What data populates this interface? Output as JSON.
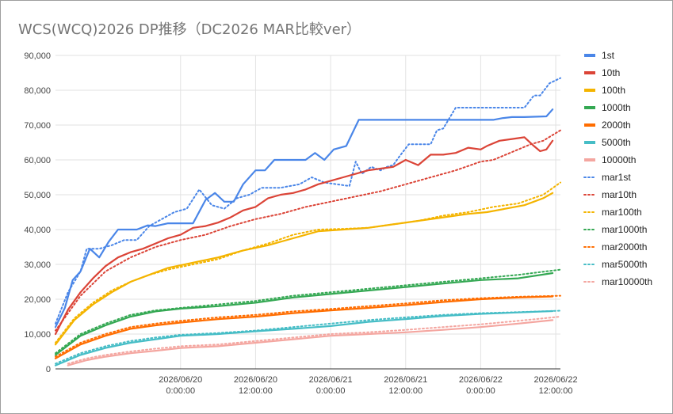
{
  "chart_data": {
    "type": "line",
    "title": "WCS(WCQ)2026 DP推移（DC2026 MAR比較ver）",
    "xlabel": "",
    "ylabel": "",
    "ylim": [
      0,
      90000
    ],
    "xlim": [
      "2026/06/19 04:00",
      "2026/06/22 12:45"
    ],
    "y_ticks": [
      "0",
      "10,000",
      "20,000",
      "30,000",
      "40,000",
      "50,000",
      "60,000",
      "70,000",
      "80,000",
      "90,000"
    ],
    "x_ticks": [
      {
        "at": "2026/06/20 00:00",
        "label": [
          "2026/06/20",
          "0:00:00"
        ]
      },
      {
        "at": "2026/06/20 12:00",
        "label": [
          "2026/06/20",
          "12:00:00"
        ]
      },
      {
        "at": "2026/06/21 00:00",
        "label": [
          "2026/06/21",
          "0:00:00"
        ]
      },
      {
        "at": "2026/06/21 12:00",
        "label": [
          "2026/06/21",
          "12:00:00"
        ]
      },
      {
        "at": "2026/06/22 00:00",
        "label": [
          "2026/06/22",
          "0:00:00"
        ]
      },
      {
        "at": "2026/06/22 12:00",
        "label": [
          "2026/06/22",
          "12:00:00"
        ]
      }
    ],
    "grid": true,
    "legend_position": "right",
    "series": [
      {
        "name": "1st",
        "color": "#4a86e8",
        "style": "solid",
        "x": [
          "2026/06/19 04:00",
          "2026/06/19 05:30",
          "2026/06/19 06:45",
          "2026/06/19 08:00",
          "2026/06/19 09:30",
          "2026/06/19 11:00",
          "2026/06/19 12:30",
          "2026/06/19 14:00",
          "2026/06/19 15:30",
          "2026/06/19 17:00",
          "2026/06/19 18:45",
          "2026/06/19 20:00",
          "2026/06/19 22:00",
          "2026/06/20 00:00",
          "2026/06/20 02:00",
          "2026/06/20 04:00",
          "2026/06/20 05:30",
          "2026/06/20 07:00",
          "2026/06/20 08:30",
          "2026/06/20 10:00",
          "2026/06/20 12:00",
          "2026/06/20 13:30",
          "2026/06/20 15:00",
          "2026/06/20 16:30",
          "2026/06/20 17:30",
          "2026/06/20 18:30",
          "2026/06/20 20:00",
          "2026/06/20 21:30",
          "2026/06/20 23:00",
          "2026/06/21 00:30",
          "2026/06/21 02:30",
          "2026/06/21 04:30",
          "2026/06/21 06:00",
          "2026/06/21 07:30",
          "2026/06/21 09:00",
          "2026/06/21 10:00",
          "2026/06/21 11:00",
          "2026/06/21 12:00",
          "2026/06/21 13:00",
          "2026/06/21 15:00",
          "2026/06/21 18:00",
          "2026/06/22 00:00",
          "2026/06/22 02:00",
          "2026/06/22 03:30",
          "2026/06/22 05:00",
          "2026/06/22 07:00",
          "2026/06/22 09:00",
          "2026/06/22 10:30",
          "2026/06/22 11:30"
        ],
        "y": [
          12000,
          17500,
          25500,
          28000,
          34500,
          32000,
          36500,
          40000,
          40000,
          40000,
          41200,
          41000,
          41800,
          41800,
          41800,
          48500,
          50500,
          48000,
          48000,
          53000,
          57000,
          57000,
          60000,
          60000,
          60000,
          60000,
          60000,
          62000,
          60000,
          63000,
          64000,
          71500,
          71500,
          71500,
          71500,
          71500,
          71500,
          71500,
          71500,
          71500,
          71500,
          71500,
          71500,
          72000,
          72300,
          72300,
          72400,
          72500,
          74500
        ]
      },
      {
        "name": "10th",
        "color": "#db4437",
        "style": "solid",
        "x": [
          "2026/06/19 04:00",
          "2026/06/19 06:00",
          "2026/06/19 08:00",
          "2026/06/19 10:00",
          "2026/06/19 12:00",
          "2026/06/19 14:00",
          "2026/06/19 16:00",
          "2026/06/19 18:00",
          "2026/06/19 20:00",
          "2026/06/19 22:00",
          "2026/06/20 00:00",
          "2026/06/20 02:00",
          "2026/06/20 04:00",
          "2026/06/20 06:00",
          "2026/06/20 08:00",
          "2026/06/20 10:00",
          "2026/06/20 12:00",
          "2026/06/20 14:00",
          "2026/06/20 16:00",
          "2026/06/20 18:00",
          "2026/06/20 20:00",
          "2026/06/20 22:00",
          "2026/06/21 00:00",
          "2026/06/21 02:00",
          "2026/06/21 04:00",
          "2026/06/21 06:00",
          "2026/06/21 08:00",
          "2026/06/21 10:00",
          "2026/06/21 12:00",
          "2026/06/21 14:00",
          "2026/06/21 16:00",
          "2026/06/21 18:00",
          "2026/06/21 20:00",
          "2026/06/21 22:00",
          "2026/06/22 00:00",
          "2026/06/22 01:00",
          "2026/06/22 03:00",
          "2026/06/22 05:00",
          "2026/06/22 07:00",
          "2026/06/22 08:30",
          "2026/06/22 09:30",
          "2026/06/22 10:30",
          "2026/06/22 11:30"
        ],
        "y": [
          10000,
          17000,
          22000,
          26000,
          29500,
          32000,
          33500,
          34500,
          36000,
          37500,
          38500,
          40500,
          41000,
          42000,
          43500,
          45500,
          46500,
          49000,
          50000,
          50500,
          51500,
          53000,
          54000,
          55000,
          56000,
          57000,
          57500,
          58000,
          60000,
          58500,
          61500,
          61500,
          62000,
          63500,
          63000,
          64000,
          65500,
          66000,
          66500,
          64000,
          62500,
          63000,
          65500
        ]
      },
      {
        "name": "100th",
        "color": "#f4b400",
        "style": "solid",
        "x": [
          "2026/06/19 04:00",
          "2026/06/19 07:00",
          "2026/06/19 10:00",
          "2026/06/19 13:00",
          "2026/06/19 16:00",
          "2026/06/19 19:00",
          "2026/06/19 22:00",
          "2026/06/20 02:00",
          "2026/06/20 06:00",
          "2026/06/20 10:00",
          "2026/06/20 14:00",
          "2026/06/20 18:00",
          "2026/06/20 22:00",
          "2026/06/21 02:00",
          "2026/06/21 06:00",
          "2026/06/21 10:00",
          "2026/06/21 14:00",
          "2026/06/21 18:00",
          "2026/06/21 22:00",
          "2026/06/22 01:00",
          "2026/06/22 04:00",
          "2026/06/22 07:00",
          "2026/06/22 10:00",
          "2026/06/22 11:30"
        ],
        "y": [
          7000,
          14000,
          18500,
          22000,
          25000,
          27000,
          29000,
          30500,
          32000,
          34000,
          35500,
          37500,
          39500,
          40000,
          40500,
          41500,
          42500,
          43500,
          44500,
          45000,
          46000,
          47000,
          49000,
          50500
        ]
      },
      {
        "name": "1000th",
        "color": "#34a853",
        "style": "solid",
        "x": [
          "2026/06/19 04:00",
          "2026/06/19 08:00",
          "2026/06/19 12:00",
          "2026/06/19 16:00",
          "2026/06/19 20:00",
          "2026/06/20 00:00",
          "2026/06/20 06:00",
          "2026/06/20 12:00",
          "2026/06/20 18:00",
          "2026/06/21 00:00",
          "2026/06/21 06:00",
          "2026/06/21 12:00",
          "2026/06/21 18:00",
          "2026/06/22 00:00",
          "2026/06/22 06:00",
          "2026/06/22 11:30"
        ],
        "y": [
          4000,
          9500,
          12500,
          15000,
          16500,
          17300,
          18000,
          19000,
          20500,
          21500,
          22500,
          23500,
          24500,
          25500,
          26000,
          27500
        ]
      },
      {
        "name": "2000th",
        "color": "#ff6d00",
        "style": "solid",
        "x": [
          "2026/06/19 04:00",
          "2026/06/19 08:00",
          "2026/06/19 12:00",
          "2026/06/19 16:00",
          "2026/06/19 20:00",
          "2026/06/20 00:00",
          "2026/06/20 06:00",
          "2026/06/20 12:00",
          "2026/06/20 18:00",
          "2026/06/21 00:00",
          "2026/06/21 06:00",
          "2026/06/21 12:00",
          "2026/06/21 18:00",
          "2026/06/22 00:00",
          "2026/06/22 06:00",
          "2026/06/22 11:30"
        ],
        "y": [
          3000,
          7000,
          9500,
          11500,
          12500,
          13300,
          14300,
          15000,
          16000,
          16800,
          17500,
          18300,
          19200,
          20000,
          20500,
          20800
        ]
      },
      {
        "name": "5000th",
        "color": "#46bdc6",
        "style": "solid",
        "x": [
          "2026/06/19 04:00",
          "2026/06/19 08:00",
          "2026/06/19 12:00",
          "2026/06/19 16:00",
          "2026/06/19 20:00",
          "2026/06/20 00:00",
          "2026/06/20 06:00",
          "2026/06/20 12:00",
          "2026/06/20 18:00",
          "2026/06/21 00:00",
          "2026/06/21 06:00",
          "2026/06/21 12:00",
          "2026/06/21 18:00",
          "2026/06/22 00:00",
          "2026/06/22 06:00",
          "2026/06/22 11:30"
        ],
        "y": [
          1000,
          4000,
          6000,
          7500,
          8500,
          9500,
          10000,
          10800,
          11500,
          12300,
          13500,
          14300,
          15200,
          15800,
          16200,
          16600
        ]
      },
      {
        "name": "10000th",
        "color": "#f4a6a0",
        "style": "solid",
        "x": [
          "2026/06/19 06:00",
          "2026/06/19 09:00",
          "2026/06/19 12:00",
          "2026/06/19 16:00",
          "2026/06/19 20:00",
          "2026/06/20 00:00",
          "2026/06/20 06:00",
          "2026/06/20 12:00",
          "2026/06/20 18:00",
          "2026/06/21 00:00",
          "2026/06/21 06:00",
          "2026/06/21 12:00",
          "2026/06/21 18:00",
          "2026/06/22 00:00",
          "2026/06/22 06:00",
          "2026/06/22 11:30"
        ],
        "y": [
          1000,
          2500,
          3500,
          4500,
          5200,
          6000,
          6500,
          7500,
          8500,
          9500,
          10000,
          10500,
          11200,
          12000,
          13000,
          14000
        ]
      },
      {
        "name": "mar1st",
        "color": "#4a86e8",
        "style": "dotted",
        "x": [
          "2026/06/19 04:00",
          "2026/06/19 06:00",
          "2026/06/19 08:00",
          "2026/06/19 09:00",
          "2026/06/19 11:00",
          "2026/06/19 13:00",
          "2026/06/19 15:00",
          "2026/06/19 17:00",
          "2026/06/19 19:00",
          "2026/06/19 21:00",
          "2026/06/19 23:00",
          "2026/06/20 01:00",
          "2026/06/20 03:00",
          "2026/06/20 05:00",
          "2026/06/20 07:00",
          "2026/06/20 09:00",
          "2026/06/20 11:00",
          "2026/06/20 13:00",
          "2026/06/20 16:00",
          "2026/06/20 19:00",
          "2026/06/20 21:00",
          "2026/06/20 23:00",
          "2026/06/21 01:00",
          "2026/06/21 03:00",
          "2026/06/21 04:00",
          "2026/06/21 05:00",
          "2026/06/21 06:30",
          "2026/06/21 08:00",
          "2026/06/21 09:00",
          "2026/06/21 10:00",
          "2026/06/21 11:00",
          "2026/06/21 12:30",
          "2026/06/21 14:00",
          "2026/06/21 16:00",
          "2026/06/21 17:00",
          "2026/06/21 18:00",
          "2026/06/21 20:00",
          "2026/06/22 00:00",
          "2026/06/22 04:00",
          "2026/06/22 06:00",
          "2026/06/22 07:00",
          "2026/06/22 08:30",
          "2026/06/22 09:30",
          "2026/06/22 11:00",
          "2026/06/22 12:45"
        ],
        "y": [
          13000,
          22000,
          28000,
          34500,
          34500,
          35500,
          37000,
          37000,
          41000,
          43000,
          45000,
          46000,
          51500,
          47000,
          46000,
          49000,
          50000,
          52000,
          52000,
          53000,
          55000,
          53500,
          53000,
          52500,
          59500,
          56000,
          58000,
          57000,
          58000,
          58500,
          61000,
          64500,
          64500,
          64500,
          68500,
          69000,
          75000,
          75000,
          75000,
          75000,
          75000,
          78500,
          78500,
          82000,
          83500
        ]
      },
      {
        "name": "mar10th",
        "color": "#db4437",
        "style": "dotted",
        "x": [
          "2026/06/19 04:00",
          "2026/06/19 08:00",
          "2026/06/19 12:00",
          "2026/06/19 16:00",
          "2026/06/19 20:00",
          "2026/06/20 00:00",
          "2026/06/20 04:00",
          "2026/06/20 08:00",
          "2026/06/20 12:00",
          "2026/06/20 16:00",
          "2026/06/20 20:00",
          "2026/06/21 00:00",
          "2026/06/21 04:00",
          "2026/06/21 08:00",
          "2026/06/21 12:00",
          "2026/06/21 16:00",
          "2026/06/21 20:00",
          "2026/06/22 00:00",
          "2026/06/22 02:00",
          "2026/06/22 04:00",
          "2026/06/22 06:00",
          "2026/06/22 08:00",
          "2026/06/22 10:00",
          "2026/06/22 12:45"
        ],
        "y": [
          11000,
          21000,
          28000,
          32000,
          35000,
          37000,
          38500,
          41000,
          43000,
          44500,
          46500,
          48000,
          49500,
          51000,
          53000,
          55000,
          57000,
          59500,
          60000,
          61500,
          63000,
          64500,
          65500,
          68500
        ]
      },
      {
        "name": "mar100th",
        "color": "#f4b400",
        "style": "dotted",
        "x": [
          "2026/06/19 04:00",
          "2026/06/19 07:00",
          "2026/06/19 10:00",
          "2026/06/19 13:00",
          "2026/06/19 16:00",
          "2026/06/19 19:00",
          "2026/06/19 22:00",
          "2026/06/20 02:00",
          "2026/06/20 06:00",
          "2026/06/20 10:00",
          "2026/06/20 14:00",
          "2026/06/20 18:00",
          "2026/06/20 22:00",
          "2026/06/21 02:00",
          "2026/06/21 06:00",
          "2026/06/21 10:00",
          "2026/06/21 14:00",
          "2026/06/21 18:00",
          "2026/06/21 22:00",
          "2026/06/22 02:00",
          "2026/06/22 06:00",
          "2026/06/22 10:00",
          "2026/06/22 12:45"
        ],
        "y": [
          7500,
          14500,
          19000,
          22500,
          25000,
          27000,
          28500,
          30000,
          31500,
          34000,
          36000,
          38500,
          40000,
          40200,
          40500,
          41500,
          42500,
          44000,
          45000,
          46500,
          47500,
          50000,
          53500
        ]
      },
      {
        "name": "mar1000th",
        "color": "#34a853",
        "style": "dotted",
        "x": [
          "2026/06/19 04:00",
          "2026/06/19 08:00",
          "2026/06/19 12:00",
          "2026/06/19 16:00",
          "2026/06/19 20:00",
          "2026/06/20 00:00",
          "2026/06/20 06:00",
          "2026/06/20 12:00",
          "2026/06/20 18:00",
          "2026/06/21 00:00",
          "2026/06/21 06:00",
          "2026/06/21 12:00",
          "2026/06/21 18:00",
          "2026/06/22 00:00",
          "2026/06/22 06:00",
          "2026/06/22 12:45"
        ],
        "y": [
          4500,
          10000,
          13000,
          15500,
          16800,
          17500,
          18500,
          19500,
          21000,
          22000,
          23000,
          24000,
          25000,
          26000,
          27000,
          28500
        ]
      },
      {
        "name": "mar2000th",
        "color": "#ff6d00",
        "style": "dotted",
        "x": [
          "2026/06/19 04:00",
          "2026/06/19 08:00",
          "2026/06/19 12:00",
          "2026/06/19 16:00",
          "2026/06/19 20:00",
          "2026/06/20 00:00",
          "2026/06/20 06:00",
          "2026/06/20 12:00",
          "2026/06/20 18:00",
          "2026/06/21 00:00",
          "2026/06/21 06:00",
          "2026/06/21 12:00",
          "2026/06/21 18:00",
          "2026/06/22 00:00",
          "2026/06/22 06:00",
          "2026/06/22 12:45"
        ],
        "y": [
          3500,
          7500,
          10000,
          12000,
          13000,
          13800,
          14800,
          15500,
          16500,
          17200,
          18000,
          18800,
          19700,
          20300,
          20700,
          21000
        ]
      },
      {
        "name": "mar5000th",
        "color": "#46bdc6",
        "style": "dotted",
        "x": [
          "2026/06/19 04:00",
          "2026/06/19 08:00",
          "2026/06/19 12:00",
          "2026/06/19 16:00",
          "2026/06/19 20:00",
          "2026/06/20 00:00",
          "2026/06/20 06:00",
          "2026/06/20 12:00",
          "2026/06/20 18:00",
          "2026/06/21 00:00",
          "2026/06/21 06:00",
          "2026/06/21 12:00",
          "2026/06/21 18:00",
          "2026/06/22 00:00",
          "2026/06/22 06:00",
          "2026/06/22 12:45"
        ],
        "y": [
          1500,
          4500,
          6500,
          8000,
          9000,
          9800,
          10300,
          11000,
          12000,
          13000,
          14000,
          14800,
          15500,
          16000,
          16300,
          16700
        ]
      },
      {
        "name": "mar10000th",
        "color": "#f4a6a0",
        "style": "dotted",
        "x": [
          "2026/06/19 06:00",
          "2026/06/19 09:00",
          "2026/06/19 12:00",
          "2026/06/19 16:00",
          "2026/06/19 20:00",
          "2026/06/20 00:00",
          "2026/06/20 06:00",
          "2026/06/20 12:00",
          "2026/06/20 18:00",
          "2026/06/21 00:00",
          "2026/06/21 06:00",
          "2026/06/21 12:00",
          "2026/06/21 18:00",
          "2026/06/22 00:00",
          "2026/06/22 06:00",
          "2026/06/22 12:45"
        ],
        "y": [
          1500,
          3000,
          4000,
          5000,
          5800,
          6500,
          7000,
          8000,
          9000,
          10000,
          10500,
          11200,
          12000,
          12800,
          13800,
          15000
        ]
      }
    ]
  }
}
